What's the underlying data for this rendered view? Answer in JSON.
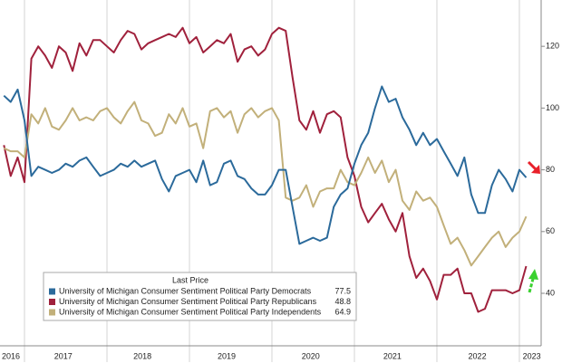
{
  "chart_data": {
    "type": "line",
    "x": [
      2016.75,
      2016.833,
      2016.917,
      2017.0,
      2017.083,
      2017.167,
      2017.25,
      2017.333,
      2017.417,
      2017.5,
      2017.583,
      2017.667,
      2017.75,
      2017.833,
      2017.917,
      2018.0,
      2018.083,
      2018.167,
      2018.25,
      2018.333,
      2018.417,
      2018.5,
      2018.583,
      2018.667,
      2018.75,
      2018.833,
      2018.917,
      2019.0,
      2019.083,
      2019.167,
      2019.25,
      2019.333,
      2019.417,
      2019.5,
      2019.583,
      2019.667,
      2019.75,
      2019.833,
      2019.917,
      2020.0,
      2020.083,
      2020.167,
      2020.25,
      2020.333,
      2020.417,
      2020.5,
      2020.583,
      2020.667,
      2020.75,
      2020.833,
      2020.917,
      2021.0,
      2021.083,
      2021.167,
      2021.25,
      2021.333,
      2021.417,
      2021.5,
      2021.583,
      2021.667,
      2021.75,
      2021.833,
      2021.917,
      2022.0,
      2022.083,
      2022.167,
      2022.25,
      2022.333,
      2022.417,
      2022.5,
      2022.583,
      2022.667,
      2022.75,
      2022.833,
      2022.917,
      2023.0,
      2023.083
    ],
    "series": [
      {
        "name": "University of Michigan Consumer Sentiment Political Party Democrats",
        "color": "#2b6a9b",
        "values": [
          104,
          102,
          106,
          96,
          78,
          81,
          80,
          79,
          80,
          82,
          81,
          83,
          84,
          81,
          78,
          79,
          80,
          82,
          81,
          83,
          81,
          82,
          83,
          77,
          73,
          78,
          79,
          80,
          76,
          83,
          75,
          76,
          82,
          83,
          78,
          77,
          74,
          72,
          72,
          75,
          80,
          80,
          68,
          56,
          57,
          58,
          57,
          58,
          68,
          72,
          74,
          82,
          88,
          92,
          100,
          107,
          102,
          103,
          97,
          93,
          88,
          92,
          88,
          90,
          86,
          82,
          78,
          84,
          72,
          66,
          66,
          75,
          80,
          77,
          73,
          80,
          77.5
        ]
      },
      {
        "name": "University of Michigan Consumer Sentiment Political Party Republicans",
        "color": "#a0213c",
        "values": [
          88,
          78,
          84,
          76,
          116,
          120,
          117,
          113,
          120,
          118,
          112,
          121,
          117,
          122,
          122,
          120,
          118,
          122,
          125,
          124,
          119,
          121,
          122,
          123,
          124,
          123,
          126,
          121,
          123,
          118,
          120,
          122,
          121,
          124,
          115,
          119,
          120,
          117,
          119,
          124,
          126,
          125,
          110,
          96,
          93,
          99,
          92,
          98,
          99,
          97,
          84,
          78,
          68,
          63,
          66,
          69,
          64,
          60,
          66,
          52,
          45,
          48,
          44,
          38,
          46,
          46,
          48,
          40,
          40,
          34,
          35,
          41,
          41,
          41,
          40,
          41,
          48.8
        ]
      },
      {
        "name": "University of Michigan Consumer Sentiment Political Party Independents",
        "color": "#c2b07a",
        "values": [
          87,
          86,
          86,
          84,
          98,
          95,
          100,
          94,
          93,
          96,
          100,
          96,
          97,
          96,
          99,
          100,
          97,
          95,
          99,
          102,
          96,
          95,
          91,
          92,
          98,
          95,
          100,
          94,
          95,
          87,
          99,
          100,
          97,
          99,
          92,
          98,
          100,
          97,
          99,
          100,
          96,
          71,
          70,
          71,
          75,
          68,
          73,
          74,
          74,
          80,
          76,
          75,
          79,
          84,
          79,
          83,
          76,
          80,
          70,
          67,
          73,
          70,
          71,
          68,
          62,
          56,
          58,
          54,
          49,
          52,
          55,
          58,
          60,
          55,
          58,
          60,
          64.9
        ]
      }
    ],
    "legend_title": "Last Price",
    "xlim": [
      2016.703,
      2023.264
    ],
    "xticks": [
      2017,
      2018,
      2019,
      2020,
      2021,
      2022,
      2023
    ],
    "xlabels": [
      {
        "value": 2016.835,
        "label": "2016"
      },
      {
        "value": 2017.47,
        "label": "2017"
      },
      {
        "value": 2018.43,
        "label": "2018"
      },
      {
        "value": 2019.45,
        "label": "2019"
      },
      {
        "value": 2020.47,
        "label": "2020"
      },
      {
        "value": 2021.46,
        "label": "2021"
      },
      {
        "value": 2022.49,
        "label": "2022"
      },
      {
        "value": 2023.15,
        "label": "2023"
      }
    ],
    "ylim": [
      23,
      135
    ],
    "yticks": [
      40,
      60,
      80,
      100,
      120
    ],
    "y_axis_side": "right"
  }
}
